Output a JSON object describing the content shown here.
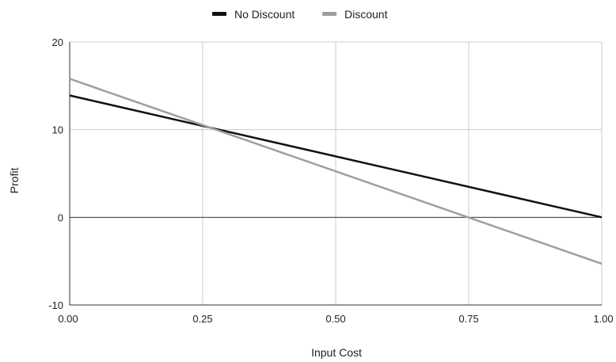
{
  "chart_data": {
    "type": "line",
    "title": "",
    "xlabel": "Input Cost",
    "ylabel": "Profit",
    "xlim": [
      0,
      1
    ],
    "ylim": [
      -10,
      20
    ],
    "x_ticks": [
      "0.00",
      "0.25",
      "0.50",
      "0.75",
      "1.00"
    ],
    "y_ticks": [
      "-10",
      "0",
      "10",
      "20"
    ],
    "grid": true,
    "legend_position": "top",
    "series": [
      {
        "name": "No Discount",
        "color": "#111111",
        "x": [
          0,
          1
        ],
        "y": [
          13.9,
          0
        ]
      },
      {
        "name": "Discount",
        "color": "#9e9e9e",
        "x": [
          0,
          1
        ],
        "y": [
          15.8,
          -5.3
        ]
      }
    ]
  }
}
